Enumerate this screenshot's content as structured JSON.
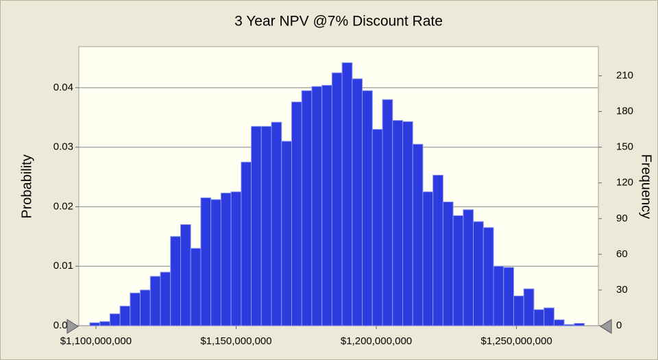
{
  "chart_data": {
    "type": "histogram",
    "title": "3 Year NPV @7% Discount Rate",
    "ylabel": "Probability",
    "y2label": "Frequency",
    "color": "#2b3be0",
    "grid": true,
    "bins": [
      1097800000,
      1101400000,
      1105000000,
      1108600000,
      1112200000,
      1115800000,
      1119400000,
      1123000000,
      1126600000,
      1130200000,
      1133800000,
      1137400000,
      1141000000,
      1144600000,
      1148200000,
      1151800000,
      1155400000,
      1159000000,
      1162600000,
      1166200000,
      1169800000,
      1173400000,
      1177000000,
      1180600000,
      1184200000,
      1187800000,
      1191400000,
      1195000000,
      1198600000,
      1202200000,
      1205800000,
      1209400000,
      1213000000,
      1216600000,
      1220200000,
      1223800000,
      1227400000,
      1231000000,
      1234600000,
      1238200000,
      1241800000,
      1245400000,
      1249000000,
      1252600000,
      1256200000,
      1259800000,
      1263400000,
      1267000000,
      1270600000,
      1274200000
    ],
    "values": [
      0.0005,
      0.0007,
      0.002,
      0.0033,
      0.0055,
      0.006,
      0.0083,
      0.009,
      0.015,
      0.017,
      0.013,
      0.0215,
      0.0212,
      0.0223,
      0.0225,
      0.0275,
      0.0335,
      0.0335,
      0.0342,
      0.031,
      0.0376,
      0.0395,
      0.0402,
      0.0404,
      0.0425,
      0.0442,
      0.0415,
      0.0395,
      0.033,
      0.038,
      0.0345,
      0.0343,
      0.0305,
      0.0225,
      0.0253,
      0.0208,
      0.0185,
      0.0195,
      0.0175,
      0.0165,
      0.01,
      0.0098,
      0.005,
      0.0062,
      0.0027,
      0.003,
      0.001,
      0.0002,
      0.0004
    ],
    "xlim": [
      1093900000,
      1279200000
    ],
    "xticks": [
      {
        "value": 1100000000,
        "label": "$1,100,000,000"
      },
      {
        "value": 1150000000,
        "label": "$1,150,000,000"
      },
      {
        "value": 1200000000,
        "label": "$1,200,000,000"
      },
      {
        "value": 1250000000,
        "label": "$1,250,000,000"
      }
    ],
    "ylim": [
      0,
      0.0469
    ],
    "yticks": [
      {
        "value": 0,
        "label": "0.00"
      },
      0.01,
      0.02,
      0.03,
      0.04
    ],
    "y2lim": [
      0,
      234.5
    ],
    "y2ticks": [
      0,
      30,
      60,
      90,
      120,
      150,
      180,
      210
    ]
  }
}
